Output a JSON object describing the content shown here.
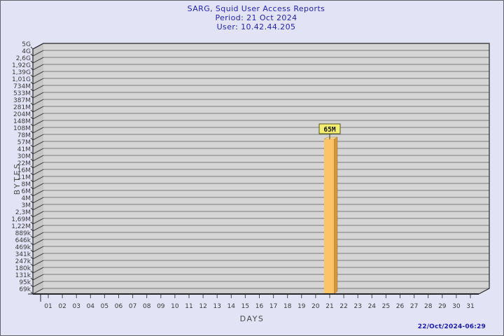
{
  "window": {
    "background": "#E3E3F6",
    "border_color": "#63636E"
  },
  "header": {
    "title": "SARG, Squid User Access Reports",
    "period_line": "Period: 21 Oct 2024",
    "user_line": "User: 10.42.44.205",
    "text_color": "#2323AC"
  },
  "footer": {
    "timestamp": "22/Oct/2024-06:29",
    "text_color": "#1A1AAC"
  },
  "chart_data": {
    "type": "bar",
    "title": "SARG, Squid User Access Reports",
    "subtitle_lines": [
      "Period: 21 Oct 2024",
      "User: 10.42.44.205"
    ],
    "xlabel": "DAYS",
    "ylabel": "BYTES",
    "y_scale": "log",
    "y_ticks": [
      "5G",
      "4G",
      "2,6G",
      "1,92G",
      "1,39G",
      "1,01G",
      "734M",
      "533M",
      "387M",
      "281M",
      "204M",
      "148M",
      "108M",
      "78M",
      "57M",
      "41M",
      "30M",
      "22M",
      "16M",
      "11M",
      "8M",
      "6M",
      "4M",
      "3M",
      "2,3M",
      "1,69M",
      "1,22M",
      "889k",
      "646k",
      "469k",
      "341k",
      "247k",
      "180k",
      "131k",
      "95k",
      "69k"
    ],
    "x_ticks": [
      "01",
      "02",
      "03",
      "04",
      "05",
      "06",
      "07",
      "08",
      "09",
      "10",
      "11",
      "12",
      "13",
      "14",
      "15",
      "16",
      "17",
      "18",
      "19",
      "20",
      "21",
      "22",
      "23",
      "24",
      "25",
      "26",
      "27",
      "28",
      "29",
      "30",
      "31"
    ],
    "bars": [
      {
        "day": "21",
        "label": "65M",
        "value_bytes": 65000000
      }
    ],
    "style": {
      "plot_bg": "#D5D5D5",
      "wall_bg": "#C6C6C6",
      "floor_bg": "#CFCFCF",
      "grid_color": "#7A7A7A",
      "wall_line_color": "#4A4A4A",
      "edge_color": "#26262B",
      "tick_text_color": "#3A3A3A",
      "axis_title_color": "#4A4A4A",
      "bar_front": "#FCC369",
      "bar_side": "#D2973C",
      "bar_top": "#FFDC96",
      "bar_outline": "#9A7326",
      "value_box_bg": "#F1EE71",
      "value_box_border": "#55551F",
      "value_text_color": "#111111"
    }
  }
}
